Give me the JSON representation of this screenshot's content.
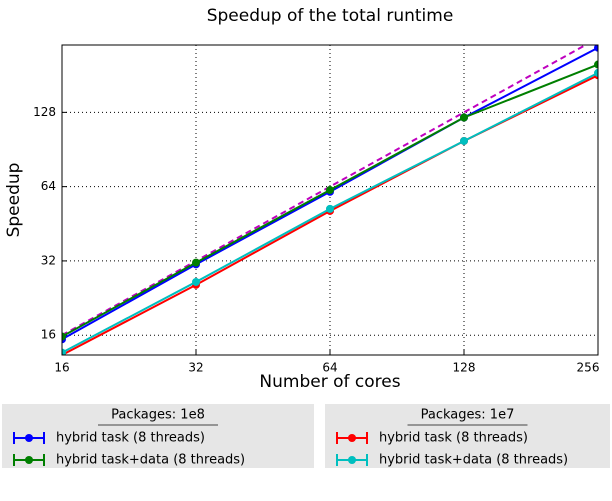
{
  "chart_data": {
    "type": "line",
    "title": "Speedup of the total runtime",
    "x_label": "Number of cores",
    "y_label": "Speedup",
    "log_scale_x": 2,
    "log_scale_y": 2,
    "grid": true,
    "x": [
      16,
      32,
      64,
      128,
      256
    ],
    "xlim": [
      16,
      256
    ],
    "xticks": [
      16,
      32,
      64,
      128,
      256
    ],
    "ylim": [
      13.3,
      240
    ],
    "yticks": [
      16,
      32,
      64,
      128
    ],
    "reference": {
      "color": "#bf00bf",
      "dashed": true,
      "values": [
        16,
        32,
        64,
        128,
        256
      ]
    },
    "groups": [
      {
        "title": "Packages: 1e8",
        "series": [
          {
            "name": "hybrid task (8 threads)",
            "color": "#0000ff",
            "values": [
              15.4,
              31,
              61,
              122,
              234
            ]
          },
          {
            "name": "hybrid task+data (8 threads)",
            "color": "#007f00",
            "values": [
              15.8,
              31.5,
              62,
              122,
              200
            ]
          }
        ]
      },
      {
        "title": "Packages: 1e7",
        "series": [
          {
            "name": "hybrid task (8 threads)",
            "color": "#ff0000",
            "values": [
              13.3,
              25.6,
              51,
              98,
              181
            ]
          },
          {
            "name": "hybrid task+data (8 threads)",
            "color": "#00bfbf",
            "values": [
              13.6,
              26.3,
              52,
              98,
              185
            ]
          }
        ]
      }
    ]
  }
}
